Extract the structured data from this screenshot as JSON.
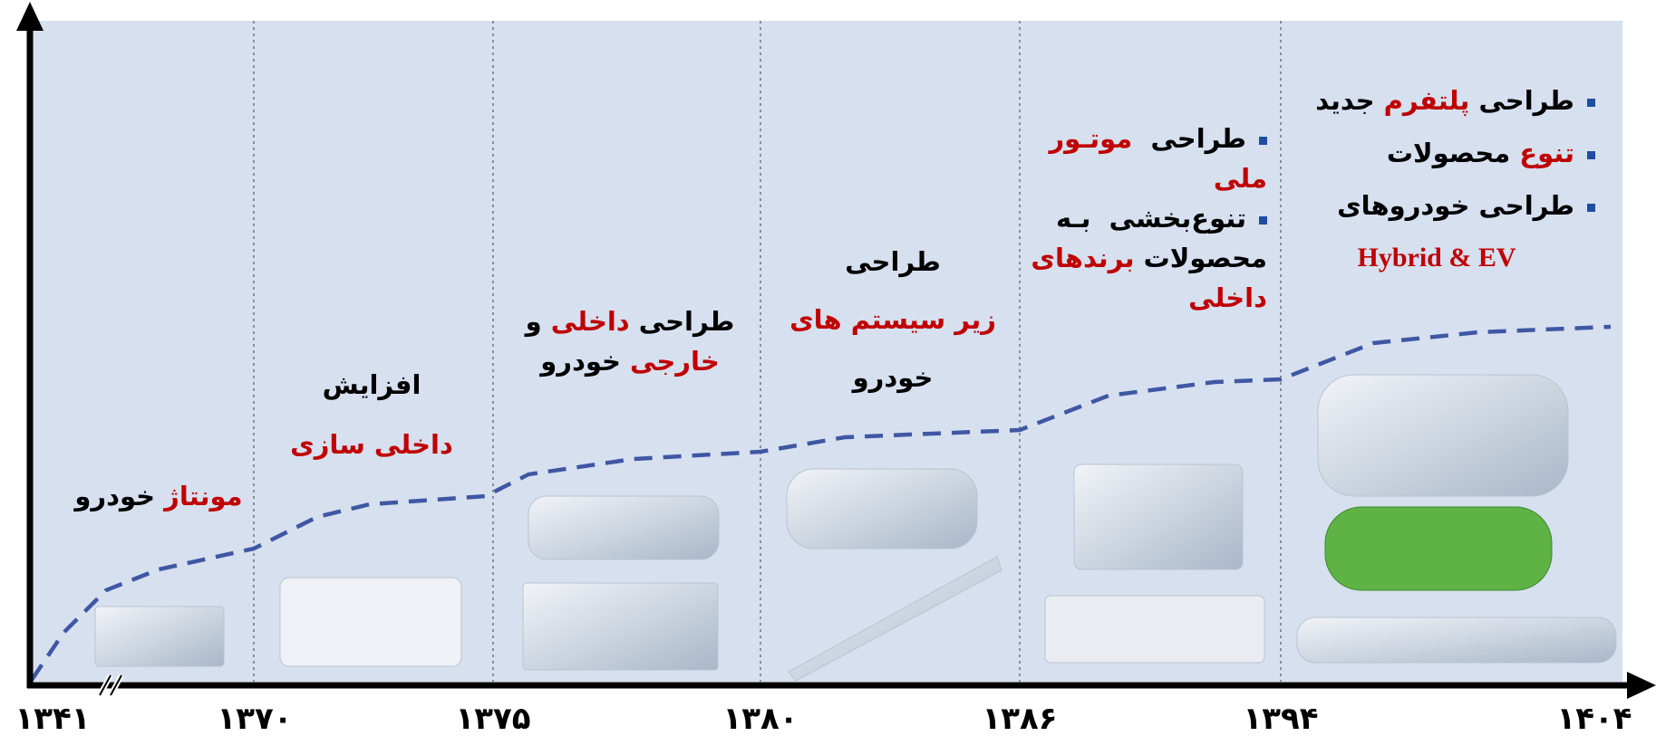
{
  "axis": {
    "years": [
      "۱۳۴۱",
      "۱۳۷۰",
      "۱۳۷۵",
      "۱۳۸۰",
      "۱۳۸۶",
      "۱۳۹۴",
      "۱۴۰۴"
    ]
  },
  "columns": [
    {
      "lines": [
        {
          "runs": [
            {
              "text": "مونتاژ",
              "color": "#c00000"
            },
            {
              "text": " خودرو",
              "color": "#000000"
            }
          ]
        }
      ]
    },
    {
      "lines": [
        {
          "runs": [
            {
              "text": "افزایش",
              "color": "#000000"
            }
          ]
        },
        {
          "runs": [
            {
              "text": "داخلی سازی",
              "color": "#c00000"
            }
          ]
        }
      ]
    },
    {
      "lines": [
        {
          "runs": [
            {
              "text": "طراحی ",
              "color": "#000000"
            },
            {
              "text": "داخلی",
              "color": "#c00000"
            },
            {
              "text": " و",
              "color": "#000000"
            }
          ]
        },
        {
          "runs": [
            {
              "text": "خارجی",
              "color": "#c00000"
            },
            {
              "text": " خودرو",
              "color": "#000000"
            }
          ]
        }
      ]
    },
    {
      "lines": [
        {
          "runs": [
            {
              "text": "طراحی",
              "color": "#000000"
            }
          ]
        },
        {
          "runs": [
            {
              "text": "زیر سیستم های",
              "color": "#c00000"
            }
          ]
        },
        {
          "runs": [
            {
              "text": "خودرو",
              "color": "#000000"
            }
          ]
        }
      ]
    },
    {
      "lines": [
        {
          "bullet": true,
          "runs": [
            {
              "text": "طراحی  ",
              "color": "#000000"
            },
            {
              "text": "موتـور",
              "color": "#c00000"
            }
          ]
        },
        {
          "runs": [
            {
              "text": "ملی",
              "color": "#c00000"
            }
          ]
        },
        {
          "bullet": true,
          "runs": [
            {
              "text": "تنوع‌بخشی  بـه",
              "color": "#000000"
            }
          ]
        },
        {
          "runs": [
            {
              "text": "محصولات ",
              "color": "#000000"
            },
            {
              "text": "برندهای",
              "color": "#c00000"
            }
          ]
        },
        {
          "runs": [
            {
              "text": "داخلی",
              "color": "#c00000"
            }
          ]
        }
      ]
    },
    {
      "lines": [
        {
          "bullet": true,
          "runs": [
            {
              "text": "طراحی ",
              "color": "#000000"
            },
            {
              "text": "پلتفرم",
              "color": "#c00000"
            },
            {
              "text": " جدید",
              "color": "#000000"
            }
          ]
        },
        {
          "bullet": true,
          "runs": [
            {
              "text": "تنوع",
              "color": "#c00000"
            },
            {
              "text": " محصولات",
              "color": "#000000"
            }
          ]
        },
        {
          "bullet": true,
          "runs": [
            {
              "text": "طراحی خودروهای",
              "color": "#000000"
            }
          ]
        },
        {
          "latin": true,
          "runs": [
            {
              "text": "Hybrid & EV",
              "color": "#c00000"
            }
          ]
        }
      ]
    }
  ]
}
